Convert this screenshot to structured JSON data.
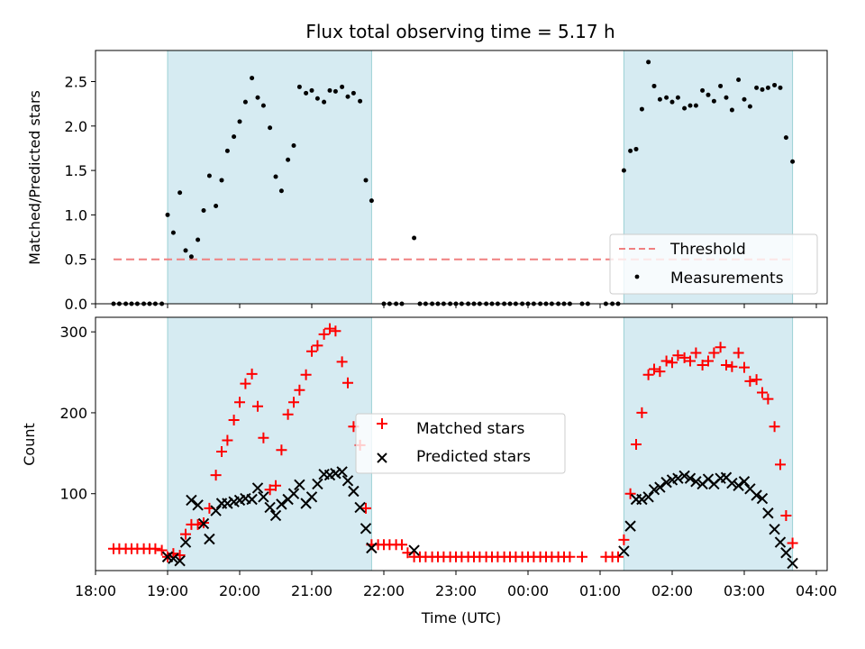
{
  "chart_data": [
    {
      "type": "scatter",
      "title": "Flux total observing time = 5.17 h",
      "ylabel": "Matched/Predicted stars",
      "ylim": [
        0,
        2.85
      ],
      "yticks": [
        0.0,
        0.5,
        1.0,
        1.5,
        2.0,
        2.5
      ],
      "ytick_labels": [
        "0.0",
        "0.5",
        "1.0",
        "1.5",
        "2.0",
        "2.5"
      ],
      "xlim": [
        18.0,
        4.15
      ],
      "threshold": {
        "name": "Threshold",
        "y": 0.5,
        "x": [
          18.25,
          3.7
        ],
        "color": "#f08080"
      },
      "shaded_intervals": [
        [
          19.0,
          21.83
        ],
        [
          1.33,
          3.67
        ]
      ],
      "shade_color": "#add8e6",
      "legend": {
        "placement": "lower-right",
        "entries": [
          "Threshold",
          "Measurements"
        ]
      },
      "series": [
        {
          "name": "Measurements",
          "color": "#000000",
          "x": [
            18.25,
            18.33,
            18.42,
            18.5,
            18.58,
            18.67,
            18.75,
            18.83,
            18.92,
            19.0,
            19.08,
            19.17,
            19.25,
            19.33,
            19.42,
            19.5,
            19.58,
            19.67,
            19.75,
            19.83,
            19.92,
            20.0,
            20.08,
            20.17,
            20.25,
            20.33,
            20.42,
            20.5,
            20.58,
            20.67,
            20.75,
            20.83,
            20.92,
            21.0,
            21.08,
            21.17,
            21.25,
            21.33,
            21.42,
            21.5,
            21.58,
            21.67,
            21.75,
            21.83,
            22.0,
            22.08,
            22.17,
            22.25,
            22.42,
            22.5,
            22.58,
            22.67,
            22.75,
            22.83,
            22.92,
            23.0,
            23.08,
            23.17,
            23.25,
            23.33,
            23.42,
            23.5,
            23.58,
            23.67,
            23.75,
            23.83,
            23.92,
            0.0,
            0.08,
            0.17,
            0.25,
            0.33,
            0.42,
            0.5,
            0.58,
            0.75,
            0.83,
            1.08,
            1.17,
            1.25,
            1.33,
            1.42,
            1.5,
            1.58,
            1.67,
            1.75,
            1.83,
            1.92,
            2.0,
            2.08,
            2.17,
            2.25,
            2.33,
            2.42,
            2.5,
            2.58,
            2.67,
            2.75,
            2.83,
            2.92,
            3.0,
            3.08,
            3.17,
            3.25,
            3.33,
            3.42,
            3.5,
            3.58,
            3.67
          ],
          "y": [
            0,
            0,
            0,
            0,
            0,
            0,
            0,
            0,
            0,
            1.0,
            0.8,
            1.25,
            0.6,
            0.53,
            0.72,
            1.05,
            1.44,
            1.1,
            1.39,
            1.72,
            1.88,
            2.05,
            2.27,
            2.54,
            2.32,
            2.23,
            1.98,
            1.43,
            1.27,
            1.62,
            1.78,
            2.44,
            2.37,
            2.4,
            2.31,
            2.27,
            2.4,
            2.39,
            2.44,
            2.33,
            2.37,
            2.28,
            1.39,
            1.16,
            0,
            0,
            0,
            0,
            0.74,
            0,
            0,
            0,
            0,
            0,
            0,
            0,
            0,
            0,
            0,
            0,
            0,
            0,
            0,
            0,
            0,
            0,
            0,
            0,
            0,
            0,
            0,
            0,
            0,
            0,
            0,
            0,
            0,
            0,
            0,
            0,
            1.5,
            1.72,
            1.74,
            2.19,
            2.72,
            2.45,
            2.3,
            2.32,
            2.27,
            2.32,
            2.2,
            2.23,
            2.23,
            2.4,
            2.35,
            2.28,
            2.45,
            2.32,
            2.18,
            2.52,
            2.3,
            2.22,
            2.43,
            2.41,
            2.43,
            2.46,
            2.43,
            1.87,
            1.6
          ]
        }
      ]
    },
    {
      "type": "scatter",
      "xlabel": "Time (UTC)",
      "ylabel": "Count",
      "ylim": [
        5,
        318
      ],
      "yticks": [
        100,
        200,
        300
      ],
      "ytick_labels": [
        "100",
        "200",
        "300"
      ],
      "xlim": [
        18.0,
        4.15
      ],
      "xticks": [
        18,
        19,
        20,
        21,
        22,
        23,
        0,
        1,
        2,
        3,
        4
      ],
      "xtick_labels": [
        "18:00",
        "19:00",
        "20:00",
        "21:00",
        "22:00",
        "23:00",
        "00:00",
        "01:00",
        "02:00",
        "03:00",
        "04:00"
      ],
      "shaded_intervals": [
        [
          19.0,
          21.83
        ],
        [
          1.33,
          3.67
        ]
      ],
      "shade_color": "#add8e6",
      "legend": {
        "placement": "center",
        "entries": [
          "Matched stars",
          "Predicted stars"
        ]
      },
      "series": [
        {
          "name": "Matched stars",
          "marker": "plus",
          "color": "#ff0000",
          "x": [
            18.25,
            18.33,
            18.42,
            18.5,
            18.58,
            18.67,
            18.75,
            18.83,
            18.92,
            19.0,
            19.08,
            19.17,
            19.25,
            19.33,
            19.42,
            19.5,
            19.58,
            19.67,
            19.75,
            19.83,
            19.92,
            20.0,
            20.08,
            20.17,
            20.25,
            20.33,
            20.42,
            20.5,
            20.58,
            20.67,
            20.75,
            20.83,
            20.92,
            21.0,
            21.08,
            21.17,
            21.25,
            21.33,
            21.42,
            21.5,
            21.58,
            21.67,
            21.75,
            21.83,
            21.92,
            22.0,
            22.08,
            22.17,
            22.25,
            22.33,
            22.42,
            22.5,
            22.58,
            22.67,
            22.75,
            22.83,
            22.92,
            23.0,
            23.08,
            23.17,
            23.25,
            23.33,
            23.42,
            23.5,
            23.58,
            23.67,
            23.75,
            23.83,
            23.92,
            0.0,
            0.08,
            0.17,
            0.25,
            0.33,
            0.42,
            0.5,
            0.58,
            0.75,
            1.08,
            1.17,
            1.25,
            1.33,
            1.42,
            1.5,
            1.58,
            1.67,
            1.75,
            1.83,
            1.92,
            2.0,
            2.08,
            2.17,
            2.25,
            2.33,
            2.42,
            2.5,
            2.58,
            2.67,
            2.75,
            2.83,
            2.92,
            3.0,
            3.08,
            3.17,
            3.25,
            3.33,
            3.42,
            3.5,
            3.58,
            3.67
          ],
          "y": [
            32,
            32,
            32,
            32,
            32,
            32,
            32,
            32,
            30,
            22,
            26,
            24,
            50,
            62,
            62,
            64,
            82,
            123,
            152,
            166,
            191,
            213,
            236,
            248,
            208,
            169,
            105,
            110,
            154,
            198,
            213,
            228,
            247,
            276,
            283,
            297,
            304,
            301,
            263,
            237,
            183,
            160,
            82,
            37,
            37,
            37,
            37,
            37,
            37,
            27,
            22,
            22,
            22,
            22,
            22,
            22,
            22,
            22,
            22,
            22,
            22,
            22,
            22,
            22,
            22,
            22,
            22,
            22,
            22,
            22,
            22,
            22,
            22,
            22,
            22,
            22,
            22,
            22,
            22,
            22,
            22,
            43,
            100,
            161,
            200,
            247,
            254,
            251,
            264,
            262,
            271,
            268,
            264,
            274,
            259,
            264,
            274,
            281,
            259,
            257,
            274,
            256,
            239,
            241,
            225,
            217,
            183,
            136,
            73,
            39
          ]
        },
        {
          "name": "Predicted stars",
          "marker": "x",
          "color": "#000000",
          "x": [
            19.0,
            19.08,
            19.17,
            19.25,
            19.33,
            19.42,
            19.5,
            19.58,
            19.67,
            19.75,
            19.83,
            19.92,
            20.0,
            20.08,
            20.17,
            20.25,
            20.33,
            20.42,
            20.5,
            20.58,
            20.67,
            20.75,
            20.83,
            20.92,
            21.0,
            21.08,
            21.17,
            21.25,
            21.33,
            21.42,
            21.5,
            21.58,
            21.67,
            21.75,
            21.83,
            22.42,
            1.33,
            1.42,
            1.5,
            1.58,
            1.67,
            1.75,
            1.83,
            1.92,
            2.0,
            2.08,
            2.17,
            2.25,
            2.33,
            2.42,
            2.5,
            2.58,
            2.67,
            2.75,
            2.83,
            2.92,
            3.0,
            3.08,
            3.17,
            3.25,
            3.33,
            3.42,
            3.5,
            3.58,
            3.67
          ],
          "y": [
            22,
            20,
            17,
            40,
            92,
            86,
            63,
            44,
            79,
            88,
            88,
            90,
            92,
            94,
            93,
            107,
            96,
            83,
            73,
            87,
            93,
            100,
            111,
            88,
            96,
            112,
            124,
            123,
            125,
            127,
            116,
            103,
            83,
            57,
            33,
            30,
            29,
            60,
            93,
            93,
            96,
            105,
            108,
            114,
            117,
            119,
            122,
            119,
            115,
            112,
            118,
            112,
            119,
            120,
            113,
            110,
            115,
            106,
            98,
            94,
            76,
            56,
            40,
            27,
            14
          ]
        }
      ]
    }
  ]
}
